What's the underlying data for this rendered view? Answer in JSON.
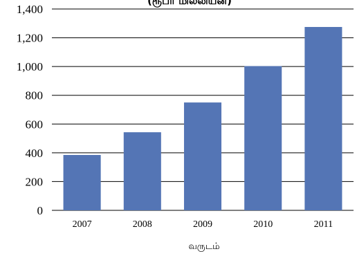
{
  "chart_data": {
    "type": "bar",
    "title": "(ரூபா  மில்லியன்)",
    "xlabel": "வருடம்",
    "ylabel": "",
    "categories": [
      "2007",
      "2008",
      "2009",
      "2010",
      "2011"
    ],
    "values": [
      385,
      543,
      750,
      1003,
      1275
    ],
    "ylim": [
      0,
      1400
    ],
    "yticks": [
      "0",
      "200",
      "400",
      "600",
      "800",
      "1,000",
      "1,200",
      "1,400"
    ],
    "grid": true,
    "bar_color": "#5475B5"
  }
}
